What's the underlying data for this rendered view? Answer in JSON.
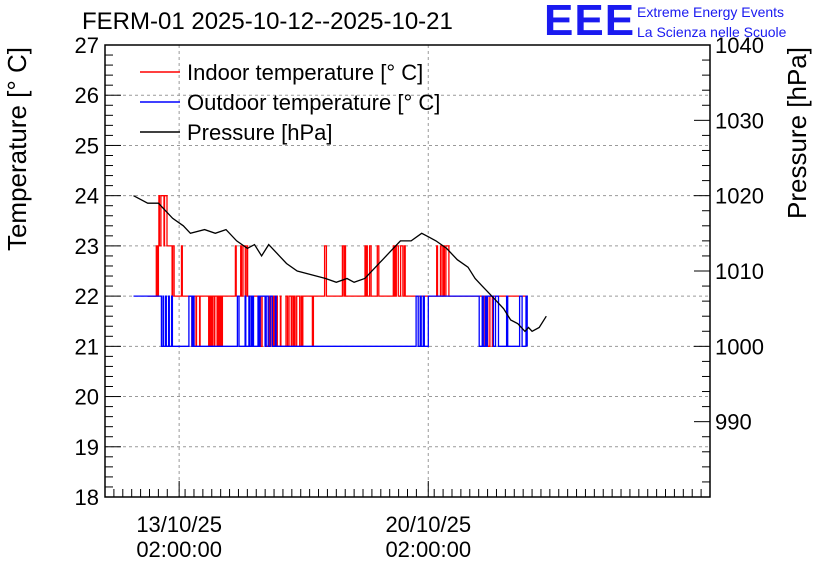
{
  "header": {
    "title": "FERM-01 2025-10-12--2025-10-21",
    "logo_text": "EEE",
    "logo_line1": "Extreme Energy Events",
    "logo_line2": "La Scienza nelle Scuole"
  },
  "colors": {
    "indoor": "#ff0000",
    "outdoor": "#0000ff",
    "pressure": "#000000",
    "logo": "#1a1af0"
  },
  "chart_data": {
    "type": "line",
    "title": "FERM-01 2025-10-12--2025-10-21",
    "xlabel": "",
    "ylabel": "Temperature [° C]",
    "y2label": "Pressure [hPa]",
    "x_unit": "days since 2025-10-12 00:00",
    "xlim": [
      -1.0,
      16.0
    ],
    "ylim": [
      18,
      27
    ],
    "y2lim": [
      980,
      1040
    ],
    "yticks": [
      "18",
      "19",
      "20",
      "21",
      "22",
      "23",
      "24",
      "25",
      "26",
      "27"
    ],
    "y2ticks": [
      "990",
      "1000",
      "1010",
      "1020",
      "1030",
      "1040"
    ],
    "xticks": [
      {
        "x": 1.0833,
        "date": "13/10/25",
        "time": "02:00:00"
      },
      {
        "x": 8.0833,
        "date": "20/10/25",
        "time": "02:00:00"
      }
    ],
    "grid": true,
    "legend_position": "top-left",
    "series": [
      {
        "name": "Indoor temperature [° C]",
        "axis": "left",
        "color_key": "indoor",
        "oscillating": true,
        "points": [
          [
            0.2,
            22
          ],
          [
            0.4,
            22
          ],
          [
            0.6,
            24
          ],
          [
            0.8,
            23
          ],
          [
            1.0,
            22
          ],
          [
            1.3,
            22.5
          ],
          [
            1.5,
            21.5
          ],
          [
            1.7,
            22
          ],
          [
            2.0,
            21.5
          ],
          [
            2.3,
            22
          ],
          [
            2.6,
            22
          ],
          [
            2.9,
            22.5
          ],
          [
            3.2,
            22
          ],
          [
            3.5,
            21.5
          ],
          [
            3.8,
            21.5
          ],
          [
            4.0,
            21
          ],
          [
            4.3,
            21.5
          ],
          [
            4.6,
            21.8
          ],
          [
            5.0,
            22
          ],
          [
            5.2,
            22.5
          ],
          [
            5.5,
            22
          ],
          [
            5.8,
            22.5
          ],
          [
            6.0,
            22
          ],
          [
            6.2,
            22
          ],
          [
            6.5,
            22.5
          ],
          [
            6.8,
            22
          ],
          [
            7.0,
            22
          ],
          [
            7.2,
            22.5
          ],
          [
            7.5,
            22
          ],
          [
            7.8,
            22
          ],
          [
            8.0,
            22
          ],
          [
            8.3,
            22
          ],
          [
            8.6,
            22.5
          ],
          [
            8.9,
            22
          ],
          [
            9.2,
            22
          ],
          [
            9.5,
            22
          ],
          [
            9.8,
            21.5
          ],
          [
            10.0,
            22
          ],
          [
            10.3,
            22
          ],
          [
            10.6,
            22
          ],
          [
            10.9,
            22
          ]
        ]
      },
      {
        "name": "Outdoor temperature [° C]",
        "axis": "left",
        "color_key": "outdoor",
        "oscillating": true,
        "points": [
          [
            -0.2,
            22
          ],
          [
            0.5,
            22
          ],
          [
            0.7,
            21.2
          ],
          [
            1.0,
            21
          ],
          [
            1.3,
            21.4
          ],
          [
            1.7,
            21
          ],
          [
            2.0,
            21
          ],
          [
            2.3,
            21
          ],
          [
            2.7,
            21.2
          ],
          [
            3.0,
            21
          ],
          [
            3.3,
            21.5
          ],
          [
            3.7,
            21.3
          ],
          [
            4.0,
            21
          ],
          [
            4.6,
            21
          ],
          [
            5.2,
            21
          ],
          [
            5.8,
            21
          ],
          [
            6.4,
            21
          ],
          [
            7.0,
            21
          ],
          [
            7.6,
            21
          ],
          [
            8.0,
            21.5
          ],
          [
            8.3,
            22
          ],
          [
            9.0,
            22
          ],
          [
            9.6,
            21.7
          ],
          [
            10.0,
            21.2
          ],
          [
            10.4,
            21.2
          ],
          [
            10.9,
            21
          ]
        ]
      },
      {
        "name": "Pressure [hPa]",
        "axis": "right",
        "color_key": "pressure",
        "oscillating": false,
        "points": [
          [
            -0.2,
            1020
          ],
          [
            0.0,
            1019.5
          ],
          [
            0.2,
            1019
          ],
          [
            0.5,
            1019
          ],
          [
            0.9,
            1017
          ],
          [
            1.2,
            1016
          ],
          [
            1.4,
            1015
          ],
          [
            1.8,
            1015.5
          ],
          [
            2.1,
            1015
          ],
          [
            2.4,
            1015.5
          ],
          [
            2.7,
            1014
          ],
          [
            3.0,
            1013
          ],
          [
            3.2,
            1013.5
          ],
          [
            3.4,
            1012
          ],
          [
            3.6,
            1013.5
          ],
          [
            3.9,
            1012
          ],
          [
            4.1,
            1011
          ],
          [
            4.4,
            1010
          ],
          [
            4.8,
            1009.5
          ],
          [
            5.2,
            1009
          ],
          [
            5.5,
            1008.5
          ],
          [
            5.8,
            1009
          ],
          [
            6.0,
            1008.5
          ],
          [
            6.3,
            1009
          ],
          [
            6.6,
            1010.5
          ],
          [
            7.0,
            1012.5
          ],
          [
            7.3,
            1014
          ],
          [
            7.6,
            1014
          ],
          [
            7.9,
            1015
          ],
          [
            8.1,
            1014.5
          ],
          [
            8.3,
            1014
          ],
          [
            8.6,
            1013
          ],
          [
            8.9,
            1011.5
          ],
          [
            9.2,
            1010.5
          ],
          [
            9.4,
            1009
          ],
          [
            9.6,
            1008
          ],
          [
            9.8,
            1007
          ],
          [
            10.0,
            1006
          ],
          [
            10.2,
            1005
          ],
          [
            10.4,
            1003.5
          ],
          [
            10.6,
            1003
          ],
          [
            10.8,
            1002
          ],
          [
            10.9,
            1002.5
          ],
          [
            11.0,
            1002
          ],
          [
            11.2,
            1002.5
          ],
          [
            11.4,
            1004
          ]
        ]
      }
    ]
  }
}
